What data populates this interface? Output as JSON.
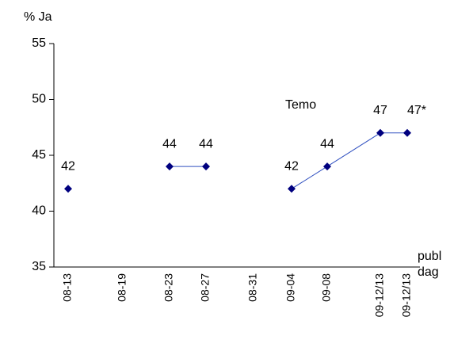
{
  "chart_data": {
    "type": "line",
    "y_label": "% Ja",
    "x_label": "publ dag",
    "annotation": "Temo",
    "categories": [
      "08-13",
      "08-19",
      "08-23",
      "08-27",
      "08-31",
      "09-04",
      "09-08",
      "09-12/13",
      "09-12/13"
    ],
    "series": [
      {
        "name": "Temo",
        "color": "#00007f",
        "values": [
          42,
          null,
          44,
          44,
          null,
          42,
          44,
          47,
          47
        ],
        "value_labels": [
          "42",
          null,
          "44",
          "44",
          null,
          "42",
          "44",
          "47",
          "47*"
        ]
      }
    ],
    "ylim": [
      35,
      55
    ],
    "yticks": [
      35,
      40,
      45,
      50,
      55
    ],
    "grid": false
  }
}
